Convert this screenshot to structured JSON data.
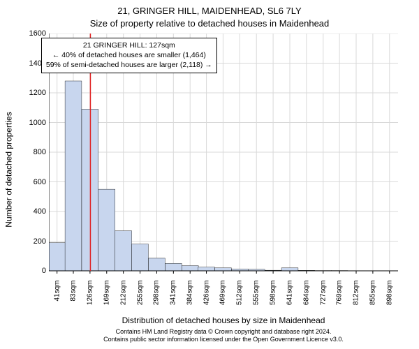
{
  "title_line1": "21, GRINGER HILL, MAIDENHEAD, SL6 7LY",
  "title_line2": "Size of property relative to detached houses in Maidenhead",
  "y_axis_label": "Number of detached properties",
  "x_axis_label": "Distribution of detached houses by size in Maidenhead",
  "footer_line1": "Contains HM Land Registry data © Crown copyright and database right 2024.",
  "footer_line2": "Contains public sector information licensed under the Open Government Licence v3.0.",
  "info_box": {
    "line1": "21 GRINGER HILL: 127sqm",
    "line2": "← 40% of detached houses are smaller (1,464)",
    "line3": "59% of semi-detached houses are larger (2,118) →"
  },
  "chart": {
    "type": "histogram",
    "background_color": "#ffffff",
    "grid_color": "#d9d9d9",
    "bar_fill": "#c8d6ee",
    "bar_stroke": "#000000",
    "bar_stroke_width": 0.4,
    "marker_line_color": "#e02020",
    "marker_line_width": 1.5,
    "marker_x_value": 127,
    "axis_font_size": 11,
    "tick_font_size": 10,
    "x_min": 20,
    "x_max": 920,
    "y_min": 0,
    "y_max": 1600,
    "y_ticks": [
      0,
      200,
      400,
      600,
      800,
      1000,
      1200,
      1400,
      1600
    ],
    "x_tick_labels": [
      "41sqm",
      "83sqm",
      "126sqm",
      "169sqm",
      "212sqm",
      "255sqm",
      "298sqm",
      "341sqm",
      "384sqm",
      "426sqm",
      "469sqm",
      "512sqm",
      "555sqm",
      "598sqm",
      "641sqm",
      "684sqm",
      "727sqm",
      "769sqm",
      "812sqm",
      "855sqm",
      "898sqm"
    ],
    "bin_width": 42.86,
    "bars": [
      {
        "x": 41,
        "count": 190
      },
      {
        "x": 83,
        "count": 1280
      },
      {
        "x": 126,
        "count": 1090
      },
      {
        "x": 169,
        "count": 550
      },
      {
        "x": 212,
        "count": 270
      },
      {
        "x": 255,
        "count": 180
      },
      {
        "x": 298,
        "count": 85
      },
      {
        "x": 341,
        "count": 50
      },
      {
        "x": 384,
        "count": 35
      },
      {
        "x": 426,
        "count": 25
      },
      {
        "x": 469,
        "count": 20
      },
      {
        "x": 512,
        "count": 12
      },
      {
        "x": 555,
        "count": 10
      },
      {
        "x": 598,
        "count": 4
      },
      {
        "x": 641,
        "count": 20
      },
      {
        "x": 684,
        "count": 3
      },
      {
        "x": 727,
        "count": 2
      },
      {
        "x": 769,
        "count": 2
      },
      {
        "x": 812,
        "count": 1
      },
      {
        "x": 855,
        "count": 1
      },
      {
        "x": 898,
        "count": 1
      }
    ]
  }
}
